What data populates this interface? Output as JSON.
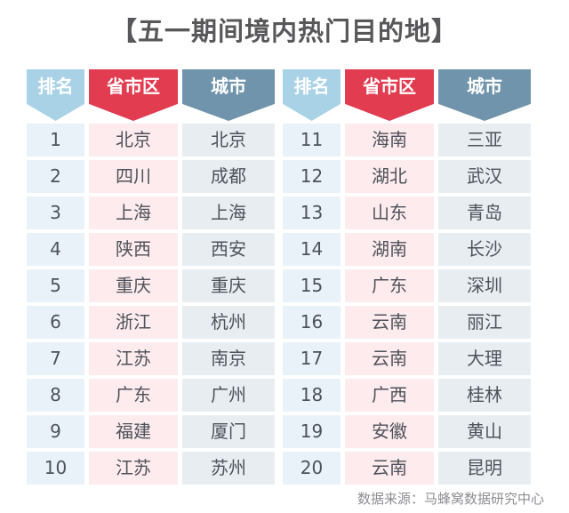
{
  "title": "【五一期间境内热门目的地】",
  "source_note": "数据来源：马蜂窝数据研究中心",
  "colors": {
    "title_text": "#58585a",
    "header_text": "#ffffff",
    "header_rank_bg": "#a9d2e7",
    "header_province_bg": "#e23c50",
    "header_city_bg": "#6f94ab",
    "cell_rank_bg": "#e9f2f9",
    "cell_province_bg": "#fdebee",
    "cell_city_bg": "#e8edf2",
    "cell_text": "#4e525a",
    "source_text": "#8e8e92"
  },
  "tables": [
    {
      "columns": [
        "排名",
        "省市区",
        "城市"
      ],
      "rows": [
        {
          "rank": "1",
          "province": "北京",
          "city": "北京"
        },
        {
          "rank": "2",
          "province": "四川",
          "city": "成都"
        },
        {
          "rank": "3",
          "province": "上海",
          "city": "上海"
        },
        {
          "rank": "4",
          "province": "陕西",
          "city": "西安"
        },
        {
          "rank": "5",
          "province": "重庆",
          "city": "重庆"
        },
        {
          "rank": "6",
          "province": "浙江",
          "city": "杭州"
        },
        {
          "rank": "7",
          "province": "江苏",
          "city": "南京"
        },
        {
          "rank": "8",
          "province": "广东",
          "city": "广州"
        },
        {
          "rank": "9",
          "province": "福建",
          "city": "厦门"
        },
        {
          "rank": "10",
          "province": "江苏",
          "city": "苏州"
        }
      ]
    },
    {
      "columns": [
        "排名",
        "省市区",
        "城市"
      ],
      "rows": [
        {
          "rank": "11",
          "province": "海南",
          "city": "三亚"
        },
        {
          "rank": "12",
          "province": "湖北",
          "city": "武汉"
        },
        {
          "rank": "13",
          "province": "山东",
          "city": "青岛"
        },
        {
          "rank": "14",
          "province": "湖南",
          "city": "长沙"
        },
        {
          "rank": "15",
          "province": "广东",
          "city": "深圳"
        },
        {
          "rank": "16",
          "province": "云南",
          "city": "丽江"
        },
        {
          "rank": "17",
          "province": "云南",
          "city": "大理"
        },
        {
          "rank": "18",
          "province": "广西",
          "city": "桂林"
        },
        {
          "rank": "19",
          "province": "安徽",
          "city": "黄山"
        },
        {
          "rank": "20",
          "province": "云南",
          "city": "昆明"
        }
      ]
    }
  ],
  "chart_data": {
    "type": "table",
    "title": "【五一期间境内热门目的地】",
    "columns": [
      "排名",
      "省市区",
      "城市"
    ],
    "rows": [
      [
        1,
        "北京",
        "北京"
      ],
      [
        2,
        "四川",
        "成都"
      ],
      [
        3,
        "上海",
        "上海"
      ],
      [
        4,
        "陕西",
        "西安"
      ],
      [
        5,
        "重庆",
        "重庆"
      ],
      [
        6,
        "浙江",
        "杭州"
      ],
      [
        7,
        "江苏",
        "南京"
      ],
      [
        8,
        "广东",
        "广州"
      ],
      [
        9,
        "福建",
        "厦门"
      ],
      [
        10,
        "江苏",
        "苏州"
      ],
      [
        11,
        "海南",
        "三亚"
      ],
      [
        12,
        "湖北",
        "武汉"
      ],
      [
        13,
        "山东",
        "青岛"
      ],
      [
        14,
        "湖南",
        "长沙"
      ],
      [
        15,
        "广东",
        "深圳"
      ],
      [
        16,
        "云南",
        "丽江"
      ],
      [
        17,
        "云南",
        "大理"
      ],
      [
        18,
        "广西",
        "桂林"
      ],
      [
        19,
        "安徽",
        "黄山"
      ],
      [
        20,
        "云南",
        "昆明"
      ]
    ],
    "source": "数据来源：马蜂窝数据研究中心",
    "layout": "two side-by-side tables: ranks 1-10 left, ranks 11-20 right"
  }
}
